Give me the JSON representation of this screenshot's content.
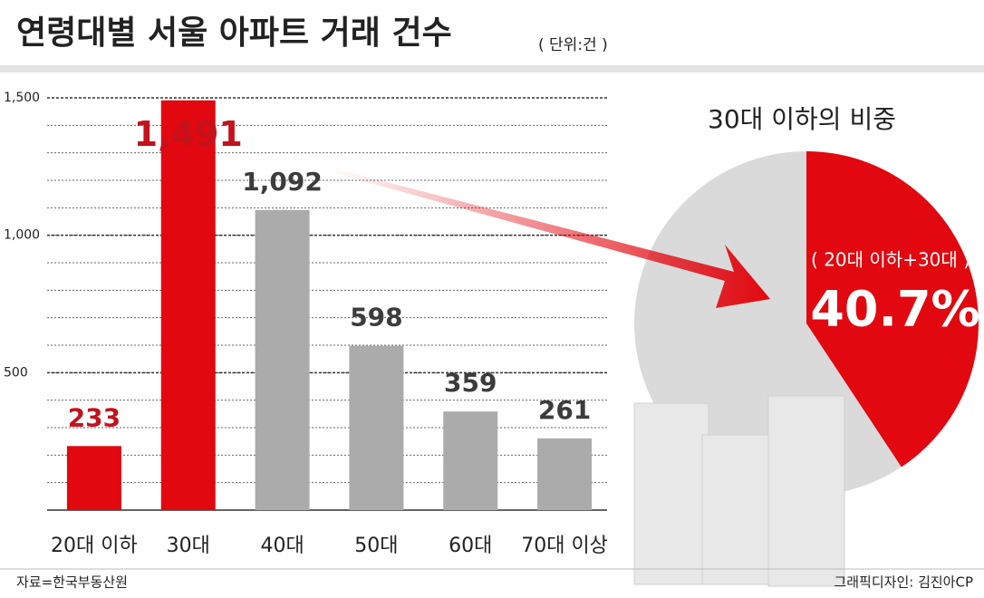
{
  "chart_data": [
    {
      "type": "bar",
      "title": "연령대별 서울 아파트 거래 건수",
      "unit": "( 단위:건 )",
      "categories": [
        "20대 이하",
        "30대",
        "40대",
        "50대",
        "60대",
        "70대 이상"
      ],
      "values": [
        233,
        1491,
        1092,
        598,
        359,
        261
      ],
      "value_labels": [
        "233",
        "1,491",
        "1,092",
        "598",
        "359",
        "261"
      ],
      "colors": [
        "#e1080f",
        "#e1080f",
        "#ababab",
        "#ababab",
        "#ababab",
        "#ababab"
      ],
      "label_colors": [
        "#c4121c",
        "#c4121c",
        "#3c3c3c",
        "#3c3c3c",
        "#3c3c3c",
        "#3c3c3c"
      ],
      "ylim": [
        0,
        1500
      ],
      "yticks": [
        500,
        {
          "value": 1000,
          "label": "1,000"
        },
        {
          "value": 1500,
          "label": "1,500"
        }
      ],
      "grid": true
    },
    {
      "type": "pie",
      "title": "30대 이하의 비중",
      "categories": [
        "( 20대 이하+30대 )",
        null
      ],
      "values": [
        40.7,
        59.3
      ],
      "value_labels": [
        "40.7%",
        null
      ],
      "colors": [
        "#e1080f",
        "#d3d3d3"
      ]
    }
  ],
  "footer": {
    "source": "자료=한국부동산원",
    "credit": "그래픽디자인: 김진아CP"
  }
}
